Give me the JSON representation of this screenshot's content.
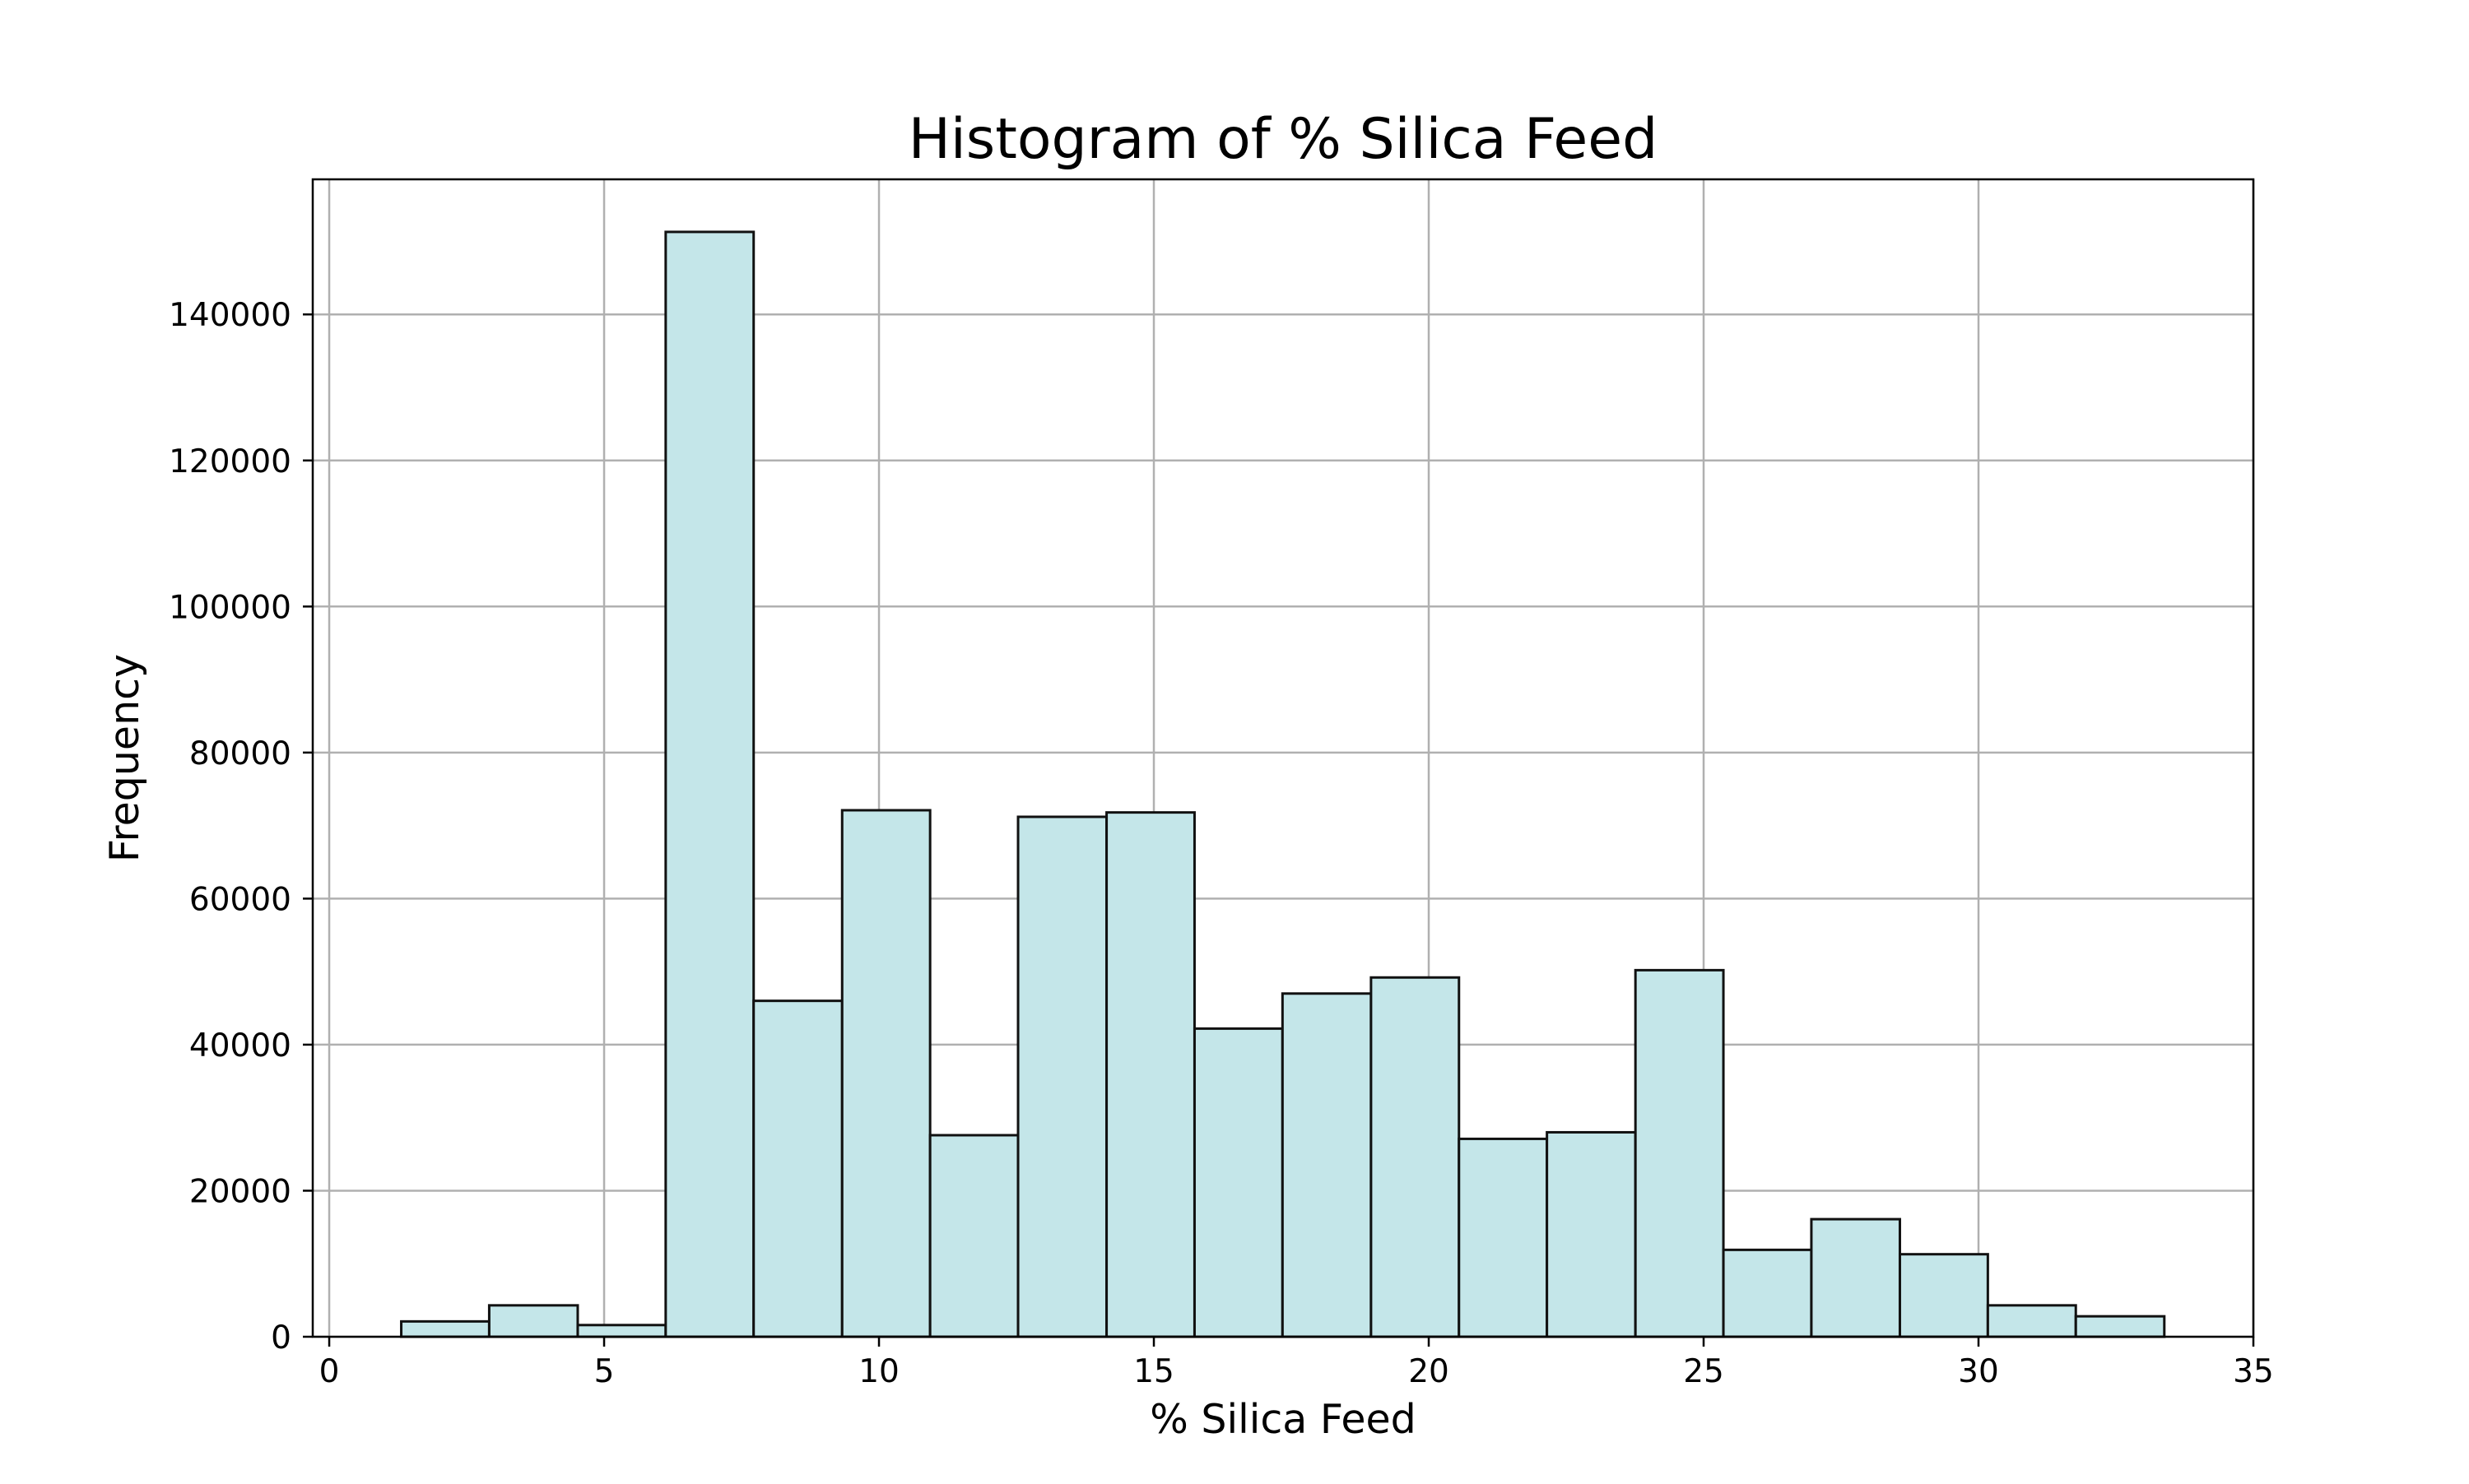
{
  "chart_data": {
    "type": "bar",
    "title": "Histogram of % Silica Feed",
    "xlabel": "% Silica Feed",
    "ylabel": "Frequency",
    "xlim": [
      -0.3,
      35
    ],
    "ylim": [
      0,
      158500
    ],
    "xticks": [
      0,
      5,
      10,
      15,
      20,
      25,
      30,
      35
    ],
    "yticks": [
      0,
      20000,
      40000,
      60000,
      80000,
      100000,
      120000,
      140000
    ],
    "grid": true,
    "bin_edges": [
      1.31,
      2.91,
      4.52,
      6.12,
      7.72,
      9.33,
      10.93,
      12.53,
      14.14,
      15.74,
      17.34,
      18.95,
      20.55,
      22.15,
      23.76,
      25.36,
      26.96,
      28.57,
      30.17,
      31.77,
      33.38
    ],
    "values": [
      2100,
      4300,
      1600,
      151300,
      46000,
      72100,
      27600,
      71200,
      71800,
      42200,
      47000,
      49200,
      27100,
      28000,
      50200,
      11900,
      16100,
      11300,
      4300,
      2800
    ],
    "colors": {
      "bar_fill": "#c4e6e9",
      "bar_edge": "#111111",
      "grid": "#b0b0b0",
      "axes": "#000000"
    }
  }
}
